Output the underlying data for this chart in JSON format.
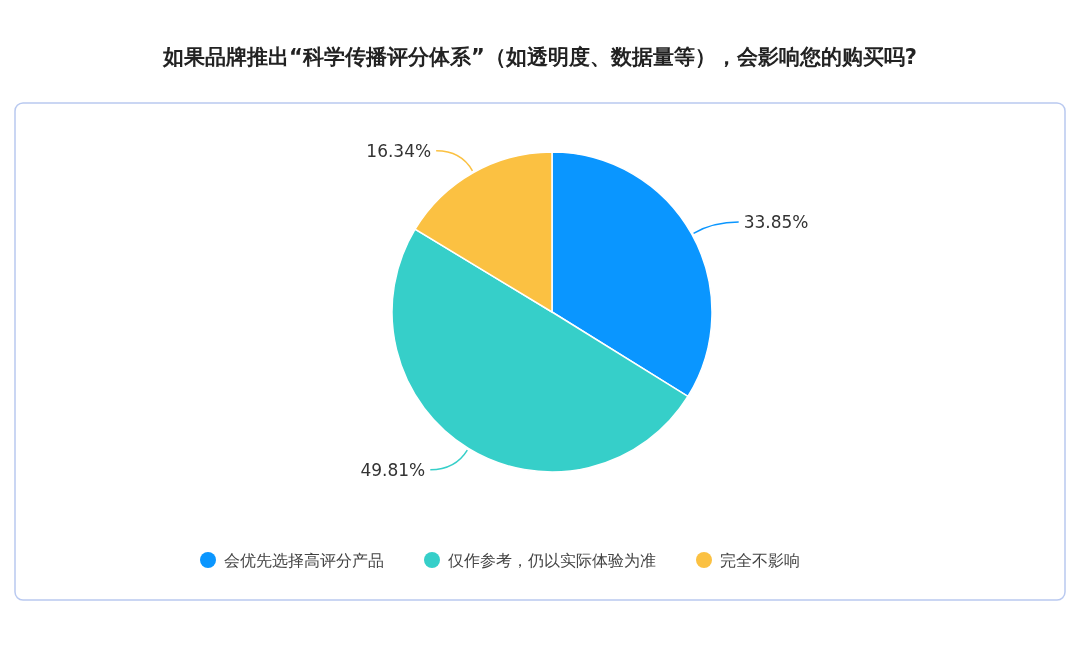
{
  "chart_data": {
    "type": "pie",
    "title": "如果品牌推出“科学传播评分体系”（如透明度、数据量等），会影响您的购买吗?",
    "categories": [
      "会优先选择高评分产品",
      "仅作参考，仍以实际体验为准",
      "完全不影响"
    ],
    "values": [
      33.85,
      49.81,
      16.34
    ],
    "value_labels": [
      "33.85%",
      "49.81%",
      "16.34%"
    ],
    "colors": [
      "#0a96ff",
      "#36cfc9",
      "#fbc142"
    ],
    "legend": "bottom"
  }
}
